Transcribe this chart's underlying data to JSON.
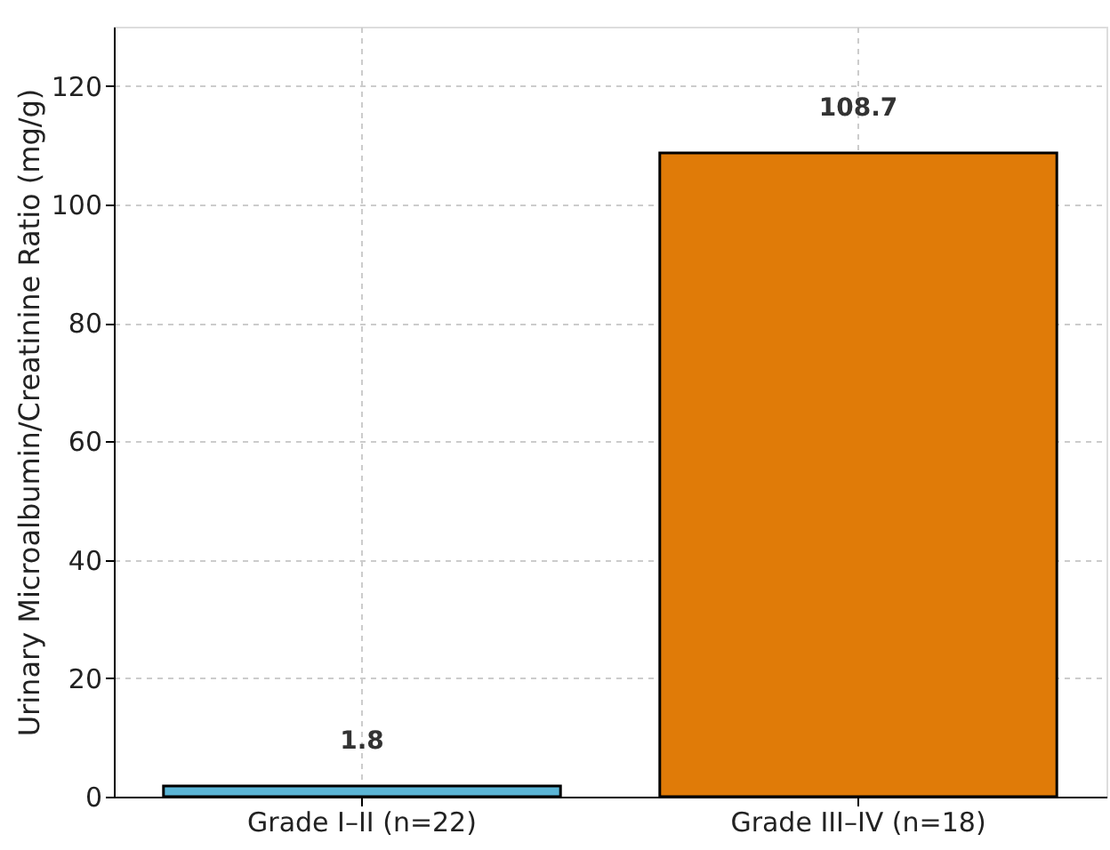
{
  "chart_data": {
    "type": "bar",
    "ylabel": "Urinary Microalbumin/Creatinine Ratio (mg/g)",
    "categories": [
      "Grade I–II (n=22)",
      "Grade III–IV (n=18)"
    ],
    "values": [
      1.8,
      108.7
    ],
    "colors": [
      "#5bb5d6",
      "#e07b08"
    ],
    "ylim": [
      0,
      130
    ],
    "yticks": [
      0,
      20,
      40,
      60,
      80,
      100,
      120
    ],
    "grid": true,
    "data_labels": true
  }
}
